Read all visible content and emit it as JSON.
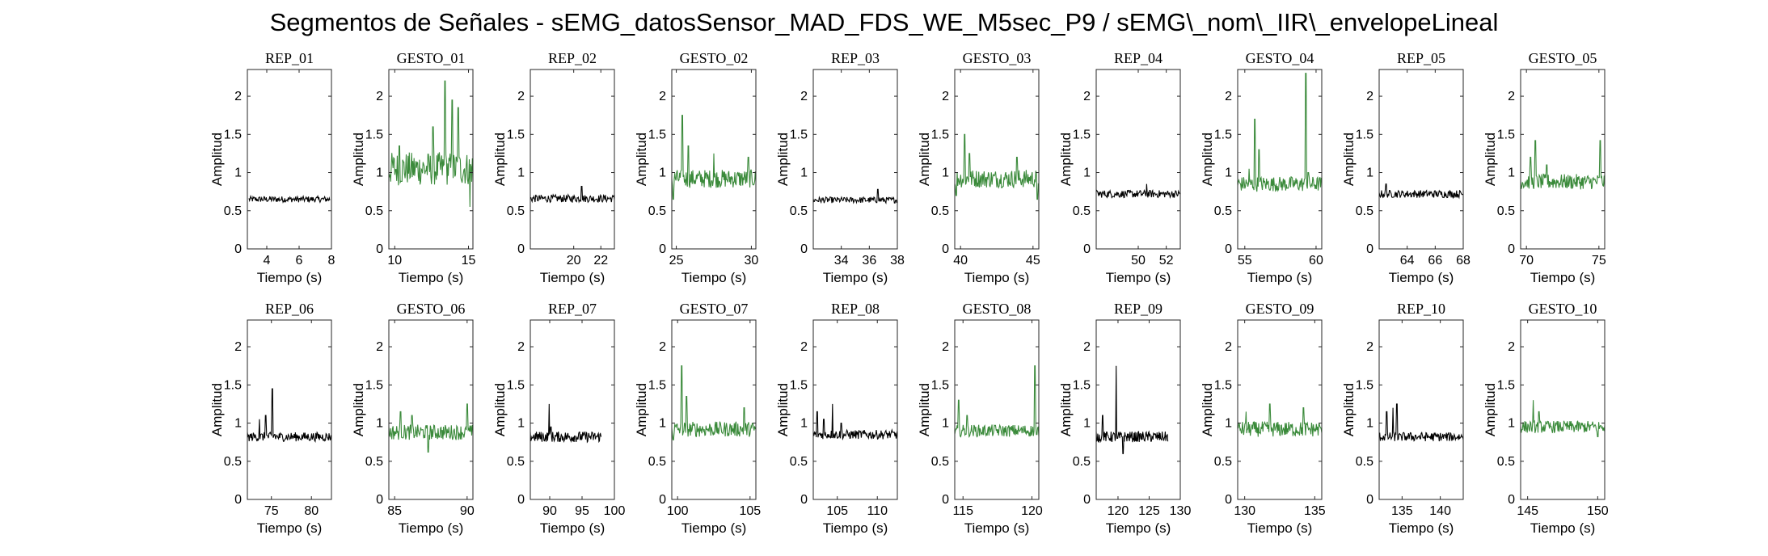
{
  "figure": {
    "title": "Segmentos de Señales - sEMG_datosSensor_MAD_FDS_WE_M5sec_P9 / sEMG\\_nom\\_IIR\\_envelopeLineal"
  },
  "colors": {
    "rep": "#000000",
    "gesto": "#3a8a3a"
  },
  "chart_data": [
    {
      "type": "line",
      "title": "REP_01",
      "xlabel": "Tiempo (s)",
      "ylabel": "Amplitud",
      "xlim": [
        2.8,
        8
      ],
      "ylim": [
        0,
        2.35
      ],
      "xticks": [
        4,
        6,
        8
      ],
      "yticks": [
        0,
        0.5,
        1,
        1.5,
        2
      ],
      "series": [
        {
          "x_start": 2.9,
          "x_end": 7.9,
          "base": 0.65,
          "noise": 0.04,
          "peaks": []
        }
      ]
    },
    {
      "type": "line",
      "title": "GESTO_01",
      "xlabel": "Tiempo (s)",
      "ylabel": "Amplitud",
      "xlim": [
        9.6,
        15.3
      ],
      "ylim": [
        0,
        2.35
      ],
      "xticks": [
        10,
        15
      ],
      "yticks": [
        0,
        0.5,
        1,
        1.5,
        2
      ],
      "series": [
        {
          "x_start": 9.6,
          "x_end": 15.3,
          "base": 1.05,
          "noise": 0.22,
          "peaks": [
            [
              10.3,
              1.35
            ],
            [
              12.6,
              1.6
            ],
            [
              13.4,
              2.2
            ],
            [
              13.9,
              1.95
            ],
            [
              14.3,
              1.85
            ],
            [
              15.1,
              0.55
            ]
          ]
        }
      ]
    },
    {
      "type": "line",
      "title": "REP_02",
      "xlabel": "Tiempo (s)",
      "ylabel": "Amplitud",
      "xlim": [
        16.8,
        23
      ],
      "ylim": [
        0,
        2.35
      ],
      "xticks": [
        20,
        22
      ],
      "yticks": [
        0,
        0.5,
        1,
        1.5,
        2
      ],
      "series": [
        {
          "x_start": 16.8,
          "x_end": 23,
          "base": 0.66,
          "noise": 0.05,
          "peaks": [
            [
              20.6,
              0.82
            ]
          ]
        }
      ]
    },
    {
      "type": "line",
      "title": "GESTO_02",
      "xlabel": "Tiempo (s)",
      "ylabel": "Amplitud",
      "xlim": [
        24.7,
        30.3
      ],
      "ylim": [
        0,
        2.35
      ],
      "xticks": [
        25,
        30
      ],
      "yticks": [
        0,
        0.5,
        1,
        1.5,
        2
      ],
      "series": [
        {
          "x_start": 24.7,
          "x_end": 30.3,
          "base": 0.92,
          "noise": 0.12,
          "peaks": [
            [
              24.8,
              0.65
            ],
            [
              25.4,
              1.75
            ],
            [
              25.8,
              1.35
            ],
            [
              27.5,
              1.25
            ],
            [
              29.8,
              1.2
            ]
          ]
        }
      ]
    },
    {
      "type": "line",
      "title": "REP_03",
      "xlabel": "Tiempo (s)",
      "ylabel": "Amplitud",
      "xlim": [
        32,
        38
      ],
      "ylim": [
        0,
        2.35
      ],
      "xticks": [
        34,
        36,
        38
      ],
      "yticks": [
        0,
        0.5,
        1,
        1.5,
        2
      ],
      "series": [
        {
          "x_start": 32,
          "x_end": 38,
          "base": 0.64,
          "noise": 0.04,
          "peaks": [
            [
              36.6,
              0.78
            ]
          ]
        }
      ]
    },
    {
      "type": "line",
      "title": "GESTO_03",
      "xlabel": "Tiempo (s)",
      "ylabel": "Amplitud",
      "xlim": [
        39.6,
        45.4
      ],
      "ylim": [
        0,
        2.35
      ],
      "xticks": [
        40,
        45
      ],
      "yticks": [
        0,
        0.5,
        1,
        1.5,
        2
      ],
      "series": [
        {
          "x_start": 39.6,
          "x_end": 45.4,
          "base": 0.92,
          "noise": 0.12,
          "peaks": [
            [
              39.7,
              0.7
            ],
            [
              40.3,
              1.5
            ],
            [
              40.6,
              1.25
            ],
            [
              43.9,
              1.2
            ],
            [
              45.3,
              0.65
            ]
          ]
        }
      ]
    },
    {
      "type": "line",
      "title": "REP_04",
      "xlabel": "Tiempo (s)",
      "ylabel": "Amplitud",
      "xlim": [
        47,
        53
      ],
      "ylim": [
        0,
        2.35
      ],
      "xticks": [
        50,
        52
      ],
      "yticks": [
        0,
        0.5,
        1,
        1.5,
        2
      ],
      "series": [
        {
          "x_start": 47,
          "x_end": 53,
          "base": 0.72,
          "noise": 0.05,
          "peaks": [
            [
              50.6,
              0.85
            ]
          ]
        }
      ]
    },
    {
      "type": "line",
      "title": "GESTO_04",
      "xlabel": "Tiempo (s)",
      "ylabel": "Amplitud",
      "xlim": [
        54.5,
        60.4
      ],
      "ylim": [
        0,
        2.35
      ],
      "xticks": [
        55,
        60
      ],
      "yticks": [
        0,
        0.5,
        1,
        1.5,
        2
      ],
      "series": [
        {
          "x_start": 54.5,
          "x_end": 60.4,
          "base": 0.85,
          "noise": 0.1,
          "peaks": [
            [
              55.3,
              1.05
            ],
            [
              55.7,
              1.7
            ],
            [
              56.0,
              1.3
            ],
            [
              59.3,
              2.3
            ],
            [
              59.45,
              1.0
            ]
          ]
        }
      ]
    },
    {
      "type": "line",
      "title": "REP_05",
      "xlabel": "Tiempo (s)",
      "ylabel": "Amplitud",
      "xlim": [
        62,
        68
      ],
      "ylim": [
        0,
        2.35
      ],
      "xticks": [
        64,
        66,
        68
      ],
      "yticks": [
        0,
        0.5,
        1,
        1.5,
        2
      ],
      "series": [
        {
          "x_start": 62,
          "x_end": 68,
          "base": 0.72,
          "noise": 0.05,
          "peaks": [
            [
              62.5,
              0.85
            ]
          ]
        }
      ]
    },
    {
      "type": "line",
      "title": "GESTO_05",
      "xlabel": "Tiempo (s)",
      "ylabel": "Amplitud",
      "xlim": [
        69.6,
        75.4
      ],
      "ylim": [
        0,
        2.35
      ],
      "xticks": [
        70,
        75
      ],
      "yticks": [
        0,
        0.5,
        1,
        1.5,
        2
      ],
      "series": [
        {
          "x_start": 69.6,
          "x_end": 75.4,
          "base": 0.88,
          "noise": 0.1,
          "peaks": [
            [
              70.3,
              1.2
            ],
            [
              70.6,
              1.42
            ],
            [
              71.4,
              1.1
            ],
            [
              75.1,
              1.42
            ]
          ]
        }
      ]
    },
    {
      "type": "line",
      "title": "REP_06",
      "xlabel": "Tiempo (s)",
      "ylabel": "Amplitud",
      "xlim": [
        72,
        82.5
      ],
      "ylim": [
        0,
        2.35
      ],
      "xticks": [
        75,
        80
      ],
      "yticks": [
        0,
        0.5,
        1,
        1.5,
        2
      ],
      "series": [
        {
          "x_start": 72,
          "x_end": 82.5,
          "base": 0.82,
          "noise": 0.06,
          "peaks": [
            [
              73.5,
              1.05
            ],
            [
              74.3,
              1.1
            ],
            [
              75.1,
              1.45
            ],
            [
              75.4,
              0.85
            ]
          ]
        }
      ]
    },
    {
      "type": "line",
      "title": "GESTO_06",
      "xlabel": "Tiempo (s)",
      "ylabel": "Amplitud",
      "xlim": [
        84.6,
        90.4
      ],
      "ylim": [
        0,
        2.35
      ],
      "xticks": [
        85,
        90
      ],
      "yticks": [
        0,
        0.5,
        1,
        1.5,
        2
      ],
      "series": [
        {
          "x_start": 84.6,
          "x_end": 90.4,
          "base": 0.88,
          "noise": 0.1,
          "peaks": [
            [
              85.4,
              1.15
            ],
            [
              86.2,
              1.1
            ],
            [
              87.3,
              0.62
            ],
            [
              90.0,
              1.25
            ]
          ]
        }
      ]
    },
    {
      "type": "line",
      "title": "REP_07",
      "xlabel": "Tiempo (s)",
      "ylabel": "Amplitud",
      "xlim": [
        87,
        100
      ],
      "ylim": [
        0,
        2.35
      ],
      "xticks": [
        90,
        95,
        100
      ],
      "yticks": [
        0,
        0.5,
        1,
        1.5,
        2
      ],
      "x_end_data": 98,
      "series": [
        {
          "x_start": 87,
          "x_end": 98,
          "base": 0.82,
          "noise": 0.07,
          "peaks": [
            [
              89.9,
              1.25
            ],
            [
              90.2,
              0.95
            ]
          ]
        }
      ]
    },
    {
      "type": "line",
      "title": "GESTO_07",
      "xlabel": "Tiempo (s)",
      "ylabel": "Amplitud",
      "xlim": [
        99.6,
        105.4
      ],
      "ylim": [
        0,
        2.35
      ],
      "xticks": [
        100,
        105
      ],
      "yticks": [
        0,
        0.5,
        1,
        1.5,
        2
      ],
      "series": [
        {
          "x_start": 99.6,
          "x_end": 105.4,
          "base": 0.92,
          "noise": 0.1,
          "peaks": [
            [
              99.7,
              0.78
            ],
            [
              100.3,
              1.75
            ],
            [
              100.6,
              1.35
            ],
            [
              104.6,
              1.2
            ]
          ]
        }
      ]
    },
    {
      "type": "line",
      "title": "REP_08",
      "xlabel": "Tiempo (s)",
      "ylabel": "Amplitud",
      "xlim": [
        102,
        112.5
      ],
      "ylim": [
        0,
        2.35
      ],
      "xticks": [
        105,
        110
      ],
      "yticks": [
        0,
        0.5,
        1,
        1.5,
        2
      ],
      "series": [
        {
          "x_start": 102,
          "x_end": 112.5,
          "base": 0.85,
          "noise": 0.06,
          "peaks": [
            [
              102.5,
              1.15
            ],
            [
              103.3,
              1.05
            ],
            [
              104.4,
              1.25
            ],
            [
              105.5,
              1.0
            ]
          ]
        }
      ]
    },
    {
      "type": "line",
      "title": "GESTO_08",
      "xlabel": "Tiempo (s)",
      "ylabel": "Amplitud",
      "xlim": [
        114.4,
        120.5
      ],
      "ylim": [
        0,
        2.35
      ],
      "xticks": [
        115,
        120
      ],
      "yticks": [
        0,
        0.5,
        1,
        1.5,
        2
      ],
      "series": [
        {
          "x_start": 114.4,
          "x_end": 120.5,
          "base": 0.9,
          "noise": 0.08,
          "peaks": [
            [
              114.7,
              1.3
            ],
            [
              115.3,
              1.1
            ],
            [
              120.2,
              1.75
            ],
            [
              120.35,
              0.85
            ]
          ]
        }
      ]
    },
    {
      "type": "line",
      "title": "REP_09",
      "xlabel": "Tiempo (s)",
      "ylabel": "Amplitud",
      "xlim": [
        116.5,
        130
      ],
      "ylim": [
        0,
        2.35
      ],
      "xticks": [
        120,
        125,
        130
      ],
      "yticks": [
        0,
        0.5,
        1,
        1.5,
        2
      ],
      "series": [
        {
          "x_start": 116.5,
          "x_end": 128,
          "base": 0.82,
          "noise": 0.07,
          "peaks": [
            [
              117.5,
              1.1
            ],
            [
              119.7,
              1.75
            ],
            [
              119.9,
              0.8
            ],
            [
              120.8,
              0.6
            ]
          ]
        }
      ]
    },
    {
      "type": "line",
      "title": "GESTO_09",
      "xlabel": "Tiempo (s)",
      "ylabel": "Amplitud",
      "xlim": [
        129.5,
        135.5
      ],
      "ylim": [
        0,
        2.35
      ],
      "xticks": [
        130,
        135
      ],
      "yticks": [
        0,
        0.5,
        1,
        1.5,
        2
      ],
      "series": [
        {
          "x_start": 129.5,
          "x_end": 135.5,
          "base": 0.92,
          "noise": 0.1,
          "peaks": [
            [
              130.1,
              1.15
            ],
            [
              131.8,
              1.25
            ],
            [
              134.2,
              1.2
            ]
          ]
        }
      ]
    },
    {
      "type": "line",
      "title": "REP_10",
      "xlabel": "Tiempo (s)",
      "ylabel": "Amplitud",
      "xlim": [
        132,
        143
      ],
      "ylim": [
        0,
        2.35
      ],
      "xticks": [
        135,
        140
      ],
      "yticks": [
        0,
        0.5,
        1,
        1.5,
        2
      ],
      "series": [
        {
          "x_start": 132,
          "x_end": 143,
          "base": 0.82,
          "noise": 0.06,
          "peaks": [
            [
              133.0,
              1.15
            ],
            [
              133.8,
              1.2
            ],
            [
              134.3,
              1.25
            ],
            [
              134.8,
              0.85
            ]
          ]
        }
      ]
    },
    {
      "type": "line",
      "title": "GESTO_10",
      "xlabel": "Tiempo (s)",
      "ylabel": "Amplitud",
      "xlim": [
        144.5,
        150.5
      ],
      "ylim": [
        0,
        2.35
      ],
      "xticks": [
        145,
        150
      ],
      "yticks": [
        0,
        0.5,
        1,
        1.5,
        2
      ],
      "series": [
        {
          "x_start": 144.5,
          "x_end": 150.5,
          "base": 0.95,
          "noise": 0.08,
          "peaks": [
            [
              145.4,
              1.3
            ],
            [
              145.8,
              1.15
            ],
            [
              150.0,
              0.82
            ]
          ]
        }
      ]
    }
  ]
}
